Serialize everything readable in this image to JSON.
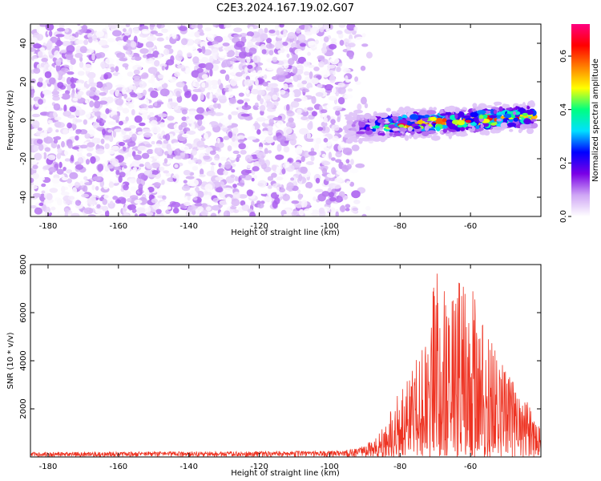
{
  "chart_data": [
    {
      "type": "heatmap",
      "title": "C2E3.2024.167.19.02.G07",
      "xlabel": "Height of straight line (km)",
      "ylabel": "Frequency (Hz)",
      "xlim": [
        -185,
        -40
      ],
      "ylim": [
        -50,
        50
      ],
      "x_ticks": [
        -180,
        -160,
        -140,
        -120,
        -100,
        -80,
        -60
      ],
      "y_ticks": [
        -40,
        -20,
        0,
        20,
        40
      ],
      "colorbar": {
        "label": "Normalized spectral amplitude",
        "range": [
          0,
          0.72
        ],
        "ticks": [
          0.0,
          0.2,
          0.4,
          0.6
        ],
        "colormap": [
          "#ffffff",
          "#cfa6f5",
          "#7a00e6",
          "#0000ff",
          "#00e0ff",
          "#00ff80",
          "#ffff00",
          "#ff8000",
          "#ff0000",
          "#ff0080"
        ]
      },
      "regions": [
        {
          "name": "noise",
          "x_range": [
            -185,
            -88
          ],
          "freq_range": [
            -50,
            50
          ],
          "amplitude_range": [
            0.0,
            0.12
          ]
        },
        {
          "name": "signal",
          "x_range": [
            -95,
            -42
          ],
          "center_freq_at_start": -4,
          "center_freq_at_end": 2,
          "half_width_hz": 6,
          "amplitude_range": [
            0.05,
            0.72
          ]
        }
      ]
    },
    {
      "type": "line",
      "xlabel": "Height of straight line (km)",
      "ylabel": "SNR (10 * v/v)",
      "xlim": [
        -185,
        -40
      ],
      "ylim": [
        0,
        8000
      ],
      "x_ticks": [
        -180,
        -160,
        -140,
        -120,
        -100,
        -80,
        -60
      ],
      "y_ticks": [
        2000,
        4000,
        6000,
        8000
      ],
      "color": "#ee3322",
      "envelope": [
        {
          "x": -185,
          "y": 200
        },
        {
          "x": -100,
          "y": 250
        },
        {
          "x": -92,
          "y": 350
        },
        {
          "x": -88,
          "y": 700
        },
        {
          "x": -84,
          "y": 1400
        },
        {
          "x": -80,
          "y": 3000
        },
        {
          "x": -76,
          "y": 4000
        },
        {
          "x": -72,
          "y": 5000
        },
        {
          "x": -70,
          "y": 7900
        },
        {
          "x": -66,
          "y": 6500
        },
        {
          "x": -63,
          "y": 7500
        },
        {
          "x": -58,
          "y": 7000
        },
        {
          "x": -55,
          "y": 5000
        },
        {
          "x": -50,
          "y": 3800
        },
        {
          "x": -47,
          "y": 2800
        },
        {
          "x": -43,
          "y": 2200
        },
        {
          "x": -40,
          "y": 1600
        }
      ]
    }
  ]
}
